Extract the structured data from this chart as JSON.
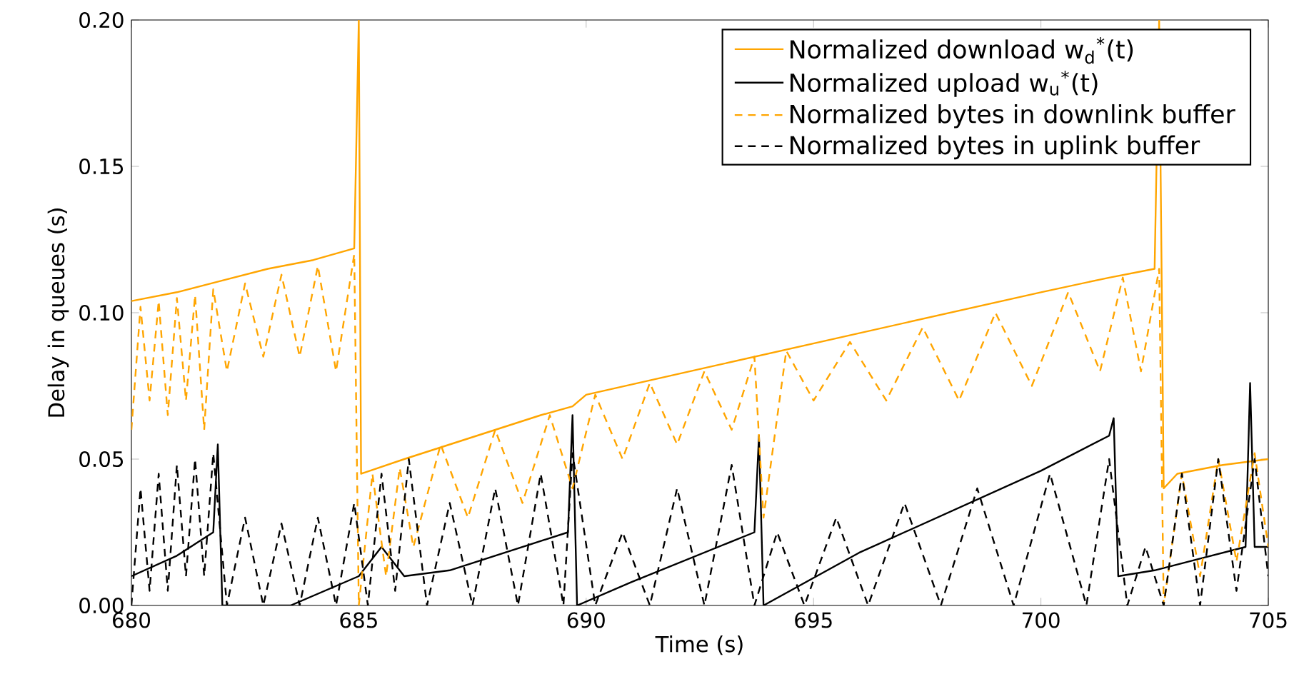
{
  "chart_data": {
    "type": "line",
    "xlabel": "Time (s)",
    "ylabel": "Delay in queues (s)",
    "xlim": [
      680,
      705
    ],
    "xticks": [
      680,
      685,
      690,
      695,
      700,
      705
    ],
    "ylim": [
      0,
      0.2
    ],
    "yticks": [
      {
        "value": 0,
        "label": "0.00"
      },
      {
        "value": 0.05,
        "label": "0.05"
      },
      {
        "value": 0.1,
        "label": "0.10"
      },
      {
        "value": 0.15,
        "label": "0.15"
      },
      {
        "value": 0.2,
        "label": "0.20"
      }
    ],
    "grid": false,
    "legend": "top right",
    "series": [
      {
        "name": "Normalized download w$_{d}$$^{*}$(t)",
        "color": "#ffa500",
        "line_style": "solid",
        "x": [
          680.0,
          681.0,
          682.0,
          683.0,
          684.0,
          684.9,
          685.0,
          685.05,
          686.0,
          687.0,
          688.0,
          689.0,
          689.7,
          690.0,
          692.0,
          694.0,
          696.0,
          698.0,
          700.0,
          701.5,
          702.5,
          702.6,
          702.7,
          703.0,
          704.0,
          705.0
        ],
        "values": [
          0.104,
          0.107,
          0.111,
          0.115,
          0.118,
          0.122,
          0.2,
          0.045,
          0.05,
          0.055,
          0.06,
          0.065,
          0.068,
          0.072,
          0.079,
          0.086,
          0.093,
          0.1,
          0.107,
          0.112,
          0.115,
          0.2,
          0.04,
          0.045,
          0.048,
          0.05
        ]
      },
      {
        "name": "Normalized upload w$_{u}$$^{*}$(t)",
        "color": "#000000",
        "line_style": "solid",
        "x": [
          680.0,
          681.0,
          681.8,
          681.9,
          682.0,
          683.5,
          685.0,
          685.5,
          686.0,
          687.0,
          689.6,
          689.7,
          689.8,
          691.0,
          693.7,
          693.8,
          693.9,
          696.0,
          698.0,
          700.0,
          701.5,
          701.6,
          701.7,
          702.5,
          703.5,
          704.5,
          704.6,
          704.7,
          705.0
        ],
        "values": [
          0.01,
          0.017,
          0.025,
          0.055,
          0.0,
          0.0,
          0.01,
          0.02,
          0.01,
          0.012,
          0.025,
          0.065,
          0.0,
          0.008,
          0.025,
          0.058,
          0.0,
          0.018,
          0.032,
          0.046,
          0.058,
          0.064,
          0.01,
          0.012,
          0.016,
          0.02,
          0.076,
          0.02,
          0.02
        ]
      },
      {
        "name": "Normalized bytes in downlink buffer",
        "color": "#ffa500",
        "line_style": "dashed",
        "x": [
          680.0,
          680.2,
          680.4,
          680.6,
          680.8,
          681.0,
          681.2,
          681.4,
          681.6,
          681.8,
          682.1,
          682.5,
          682.9,
          683.3,
          683.7,
          684.1,
          684.5,
          684.9,
          685.0,
          685.3,
          685.6,
          685.9,
          686.2,
          686.8,
          687.4,
          688.0,
          688.6,
          689.2,
          689.7,
          690.2,
          690.8,
          691.4,
          692.0,
          692.6,
          693.2,
          693.7,
          693.9,
          694.4,
          695.0,
          695.8,
          696.6,
          697.4,
          698.2,
          699.0,
          699.8,
          700.6,
          701.3,
          701.8,
          702.2,
          702.6,
          702.7,
          703.1,
          703.5,
          703.9,
          704.3,
          704.7,
          705.0
        ],
        "values": [
          0.06,
          0.102,
          0.07,
          0.104,
          0.065,
          0.105,
          0.07,
          0.106,
          0.06,
          0.108,
          0.08,
          0.11,
          0.085,
          0.113,
          0.085,
          0.116,
          0.08,
          0.12,
          0.0,
          0.045,
          0.01,
          0.047,
          0.02,
          0.055,
          0.03,
          0.06,
          0.035,
          0.065,
          0.04,
          0.072,
          0.05,
          0.076,
          0.055,
          0.08,
          0.06,
          0.085,
          0.03,
          0.087,
          0.07,
          0.09,
          0.07,
          0.095,
          0.07,
          0.1,
          0.075,
          0.107,
          0.08,
          0.112,
          0.08,
          0.115,
          0.0,
          0.045,
          0.01,
          0.05,
          0.015,
          0.052,
          0.02
        ]
      },
      {
        "name": "Normalized bytes in uplink buffer",
        "color": "#000000",
        "line_style": "dashed",
        "x": [
          680.0,
          680.2,
          680.4,
          680.6,
          680.8,
          681.0,
          681.2,
          681.4,
          681.6,
          681.8,
          682.1,
          682.5,
          682.9,
          683.3,
          683.7,
          684.1,
          684.5,
          684.9,
          685.2,
          685.5,
          685.8,
          686.1,
          686.5,
          687.0,
          687.5,
          688.0,
          688.5,
          689.0,
          689.5,
          689.7,
          690.2,
          690.8,
          691.4,
          692.0,
          692.6,
          693.2,
          693.7,
          694.2,
          694.8,
          695.5,
          696.2,
          697.0,
          697.8,
          698.6,
          699.4,
          700.2,
          701.0,
          701.5,
          701.9,
          702.3,
          702.7,
          703.1,
          703.5,
          703.9,
          704.3,
          704.7,
          705.0
        ],
        "values": [
          0.0,
          0.04,
          0.005,
          0.045,
          0.005,
          0.048,
          0.01,
          0.05,
          0.01,
          0.052,
          0.0,
          0.03,
          0.0,
          0.028,
          0.0,
          0.03,
          0.0,
          0.035,
          0.0,
          0.045,
          0.005,
          0.05,
          0.0,
          0.035,
          0.0,
          0.04,
          0.0,
          0.045,
          0.0,
          0.052,
          0.0,
          0.025,
          0.0,
          0.04,
          0.0,
          0.048,
          0.0,
          0.025,
          0.0,
          0.03,
          0.0,
          0.035,
          0.0,
          0.04,
          0.0,
          0.045,
          0.0,
          0.05,
          0.0,
          0.02,
          0.0,
          0.045,
          0.0,
          0.05,
          0.005,
          0.05,
          0.01
        ]
      }
    ]
  }
}
